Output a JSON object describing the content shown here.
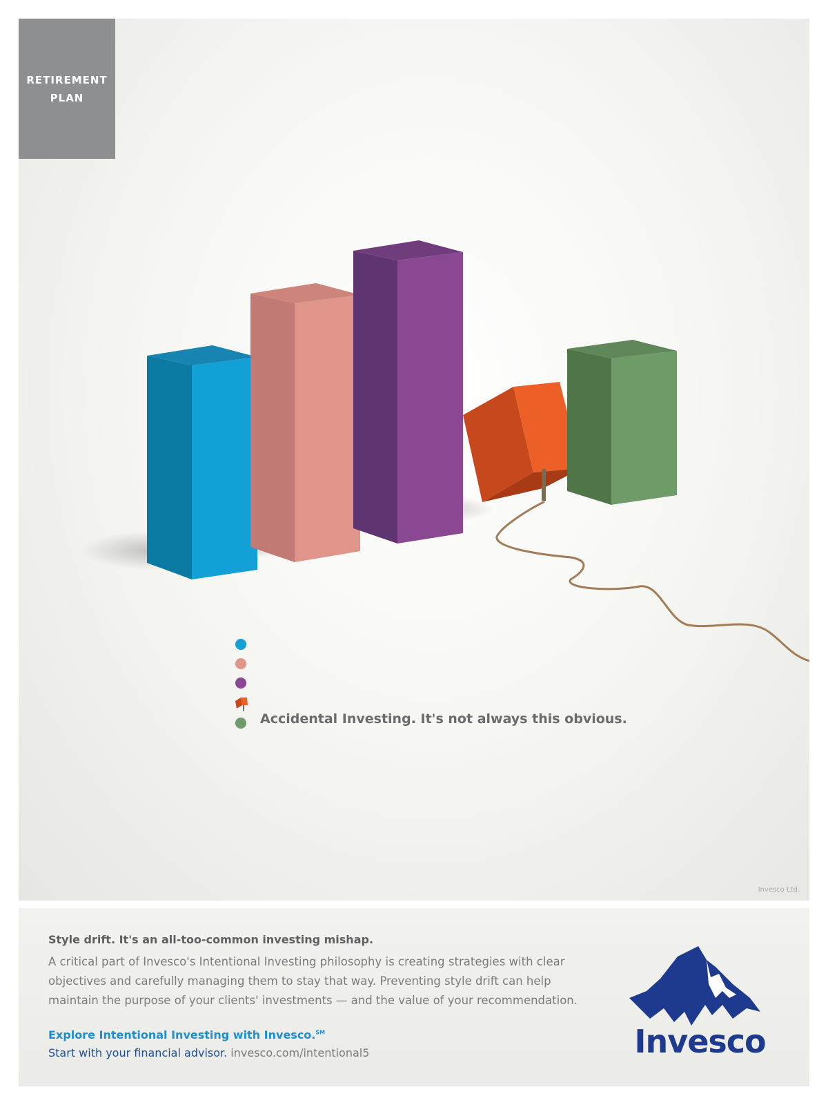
{
  "hero": {
    "tag": "RETIREMENT\nPLAN",
    "headline": "Accidental Investing. It's not always this obvious.",
    "credit": "Invesco Ltd.",
    "colors": {
      "blue": "#12a0d6",
      "pink": "#e0958a",
      "purple": "#8a4892",
      "orange": "#ec6027",
      "green": "#6f9b69"
    }
  },
  "footer": {
    "subhead": "Style drift. It's an all-too-common investing mishap.",
    "body": "A critical part of Invesco's Intentional Investing philosophy is creating strategies with clear objectives and carefully managing them to stay that way. Preventing style drift can help maintain the purpose of your clients' investments — and the value of your recommendation.",
    "cta": "Explore Intentional Investing with Invesco.",
    "cta_mark": "SM",
    "start": "Start with your financial advisor.",
    "url": "invesco.com/intentional5",
    "logo_text": "Invesco"
  }
}
